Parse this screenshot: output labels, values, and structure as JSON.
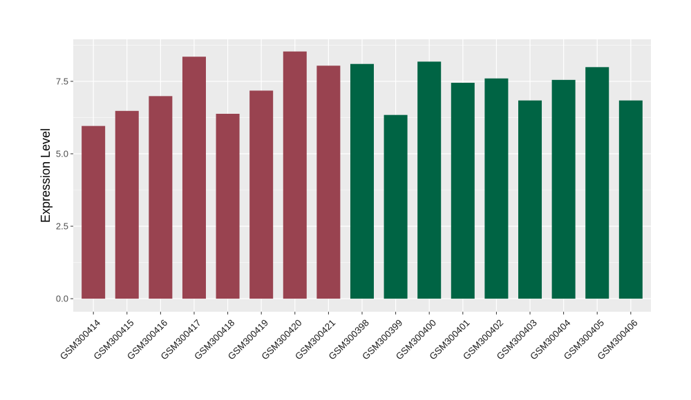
{
  "chart_data": {
    "type": "bar",
    "title": "",
    "xlabel": "",
    "ylabel": "Expression Level",
    "ylim": [
      -0.45,
      8.95
    ],
    "yticks": [
      "0.0",
      "2.5",
      "5.0",
      "7.5"
    ],
    "ytick_values": [
      0,
      2.5,
      5.0,
      7.5
    ],
    "grid": true,
    "legend": "none",
    "categories": [
      "GSM300414",
      "GSM300415",
      "GSM300416",
      "GSM300417",
      "GSM300418",
      "GSM300419",
      "GSM300420",
      "GSM300421",
      "GSM300398",
      "GSM300399",
      "GSM300400",
      "GSM300401",
      "GSM300402",
      "GSM300403",
      "GSM300404",
      "GSM300405",
      "GSM300406"
    ],
    "values": [
      5.96,
      6.48,
      6.99,
      8.35,
      6.38,
      7.18,
      8.53,
      8.04,
      8.1,
      6.34,
      8.18,
      7.45,
      7.6,
      6.84,
      7.55,
      7.99,
      6.84
    ],
    "bar_colors": [
      "#994350",
      "#994350",
      "#994350",
      "#994350",
      "#994350",
      "#994350",
      "#994350",
      "#994350",
      "#006444",
      "#006444",
      "#006444",
      "#006444",
      "#006444",
      "#006444",
      "#006444",
      "#006444",
      "#006444"
    ],
    "panel_background": "#ebebeb",
    "grid_color": "#ffffff"
  }
}
